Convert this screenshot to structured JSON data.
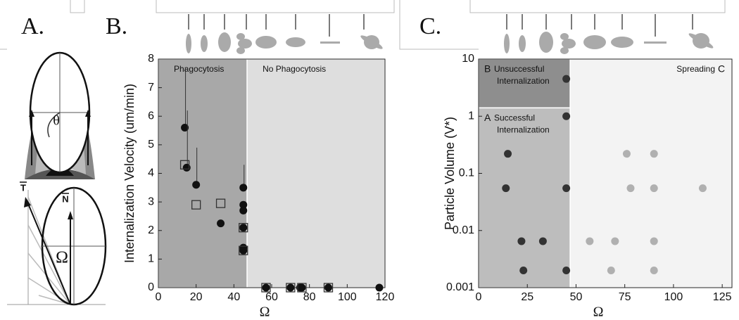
{
  "panel_labels": [
    "A.",
    "B.",
    "C."
  ],
  "diagram": {
    "labels": [
      "θ",
      "T",
      "N",
      "Ω"
    ]
  },
  "chart_data": [
    {
      "type": "scatter",
      "ylabel": "Internalization Velocity (um/min)",
      "xlabel": "Ω",
      "xlim": [
        0,
        120
      ],
      "xticks": [
        0,
        20,
        40,
        60,
        80,
        100,
        120
      ],
      "ylim": [
        0,
        8
      ],
      "yticks": [
        0,
        1,
        2,
        3,
        4,
        5,
        6,
        7,
        8
      ],
      "regions": [
        {
          "lines": [
            "Phagocytosis"
          ],
          "xlim": [
            0,
            47
          ],
          "ylim": [
            0,
            8
          ],
          "color": "#a8a8a8"
        },
        {
          "lines": [
            "No Phagocytosis"
          ],
          "xlim": [
            47,
            120
          ],
          "ylim": [
            0,
            8
          ],
          "color": "#dedede"
        }
      ],
      "series": [
        {
          "marker": "circle",
          "color": "#111111",
          "x": [
            14,
            15,
            20,
            33,
            45,
            45,
            45,
            45,
            45,
            45,
            57,
            70,
            75,
            76,
            90,
            117
          ],
          "values": [
            5.6,
            4.2,
            3.6,
            2.25,
            3.5,
            2.9,
            2.7,
            2.1,
            1.4,
            1.3,
            0,
            0,
            0,
            0,
            0,
            0
          ],
          "errors": [
            2.1,
            2.0,
            1.3,
            null,
            0.8,
            null,
            null,
            null,
            null,
            null,
            null,
            null,
            null,
            null,
            null,
            null
          ]
        },
        {
          "marker": "open-square",
          "color": "#333333",
          "x": [
            14,
            20,
            33,
            45,
            45,
            57,
            70,
            76,
            90
          ],
          "values": [
            4.3,
            2.9,
            2.95,
            2.1,
            1.3,
            0,
            0,
            0,
            0
          ]
        }
      ]
    },
    {
      "type": "scatter",
      "ylabel": "Particle Volume (V*)",
      "xlabel": "Ω",
      "ylog": true,
      "xlim": [
        0,
        130
      ],
      "xticks": [
        0,
        25,
        50,
        75,
        100,
        125
      ],
      "ylim": [
        0.001,
        10
      ],
      "yticks": [
        0.001,
        0.01,
        0.1,
        1,
        10
      ],
      "regions": [
        {
          "letter": "B",
          "lines": [
            "Unsuccessful",
            "Internalization"
          ],
          "xlim": [
            0,
            47
          ],
          "ylim": [
            1.4,
            10
          ],
          "color": "#8e8e8e"
        },
        {
          "letter": "A",
          "lines": [
            "Successful",
            "Internalization"
          ],
          "xlim": [
            0,
            47
          ],
          "ylim": [
            0.001,
            1.4
          ],
          "color": "#bdbdbd"
        },
        {
          "letter": "C",
          "lines": [
            "Spreading"
          ],
          "xlim": [
            47,
            130
          ],
          "ylim": [
            0.001,
            10
          ],
          "color": "#f3f3f3"
        }
      ],
      "series": [
        {
          "marker": "circle",
          "color": "#333333",
          "x": [
            15,
            14,
            22,
            33,
            23,
            45,
            45,
            45,
            45
          ],
          "values": [
            0.22,
            0.055,
            0.0065,
            0.0065,
            0.002,
            4.5,
            1,
            0.055,
            0.002
          ]
        },
        {
          "marker": "circle",
          "color": "#b0b0b0",
          "x": [
            76,
            90,
            78,
            90,
            115,
            57,
            70,
            90,
            68,
            90
          ],
          "values": [
            0.22,
            0.22,
            0.055,
            0.055,
            0.055,
            0.0065,
            0.0065,
            0.0065,
            0.002,
            0.002
          ]
        }
      ]
    }
  ]
}
